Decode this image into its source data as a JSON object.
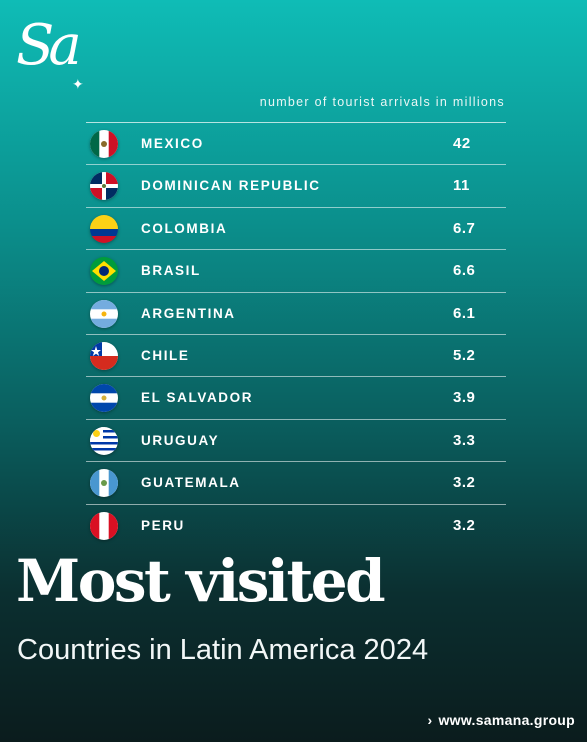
{
  "logo": {
    "text": "Sa",
    "star": "✦"
  },
  "chart_data": {
    "type": "table",
    "unit_note": "number of tourist arrivals in millions",
    "columns": [
      "country",
      "tourist_arrivals_millions"
    ],
    "rows": [
      {
        "country": "MEXICO",
        "value": "42",
        "flag": "mexico"
      },
      {
        "country": "DOMINICAN REPUBLIC",
        "value": "11",
        "flag": "dominican-republic"
      },
      {
        "country": "COLOMBIA",
        "value": "6.7",
        "flag": "colombia"
      },
      {
        "country": "BRASIL",
        "value": "6.6",
        "flag": "brazil"
      },
      {
        "country": "ARGENTINA",
        "value": "6.1",
        "flag": "argentina"
      },
      {
        "country": "CHILE",
        "value": "5.2",
        "flag": "chile"
      },
      {
        "country": "EL SALVADOR",
        "value": "3.9",
        "flag": "el-salvador"
      },
      {
        "country": "URUGUAY",
        "value": "3.3",
        "flag": "uruguay"
      },
      {
        "country": "GUATEMALA",
        "value": "3.2",
        "flag": "guatemala"
      },
      {
        "country": "PERU",
        "value": "3.2",
        "flag": "peru"
      }
    ]
  },
  "headline": "Most visited",
  "tagline": "Countries in Latin America 2024",
  "footer": {
    "chevron_icon": "›",
    "website": "www.samana.group"
  },
  "colors": {
    "gradient_top": "#0fbcb6",
    "gradient_bottom": "#0b1c1d",
    "text": "#ffffff"
  }
}
